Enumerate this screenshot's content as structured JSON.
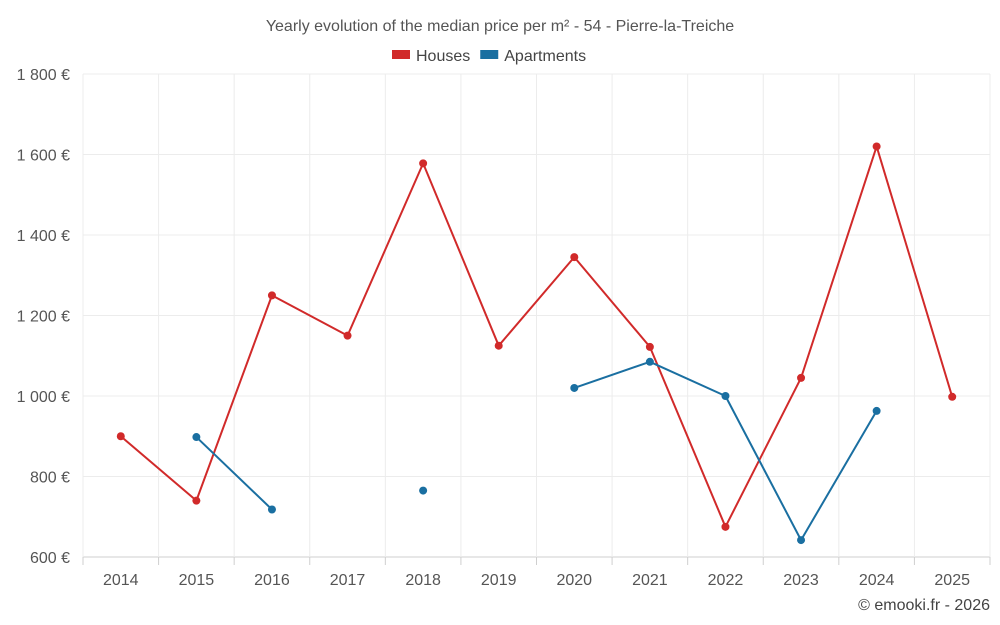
{
  "chart_data": {
    "type": "line",
    "title": "Yearly evolution of the median price per m² - 54 - Pierre-la-Treiche",
    "categories": [
      "2014",
      "2015",
      "2016",
      "2017",
      "2018",
      "2019",
      "2020",
      "2021",
      "2022",
      "2023",
      "2024",
      "2025"
    ],
    "ylim": [
      600,
      1800
    ],
    "yticks": [
      600,
      800,
      1000,
      1200,
      1400,
      1600,
      1800
    ],
    "ytick_labels": [
      "600 €",
      "800 €",
      "1 000 €",
      "1 200 €",
      "1 400 €",
      "1 600 €",
      "1 800 €"
    ],
    "xlabel": "",
    "ylabel": "",
    "grid": true,
    "legend_position": "top-center",
    "series": [
      {
        "name": "Houses",
        "color": "#d12a2a",
        "values": [
          900,
          740,
          1250,
          1150,
          1578,
          1125,
          1345,
          1122,
          675,
          1045,
          1620,
          998
        ]
      },
      {
        "name": "Apartments",
        "color": "#1a6fa1",
        "values": [
          null,
          898,
          718,
          null,
          765,
          null,
          1020,
          1085,
          1000,
          642,
          963,
          null
        ]
      }
    ]
  },
  "credit": "© emooki.fr - 2026"
}
